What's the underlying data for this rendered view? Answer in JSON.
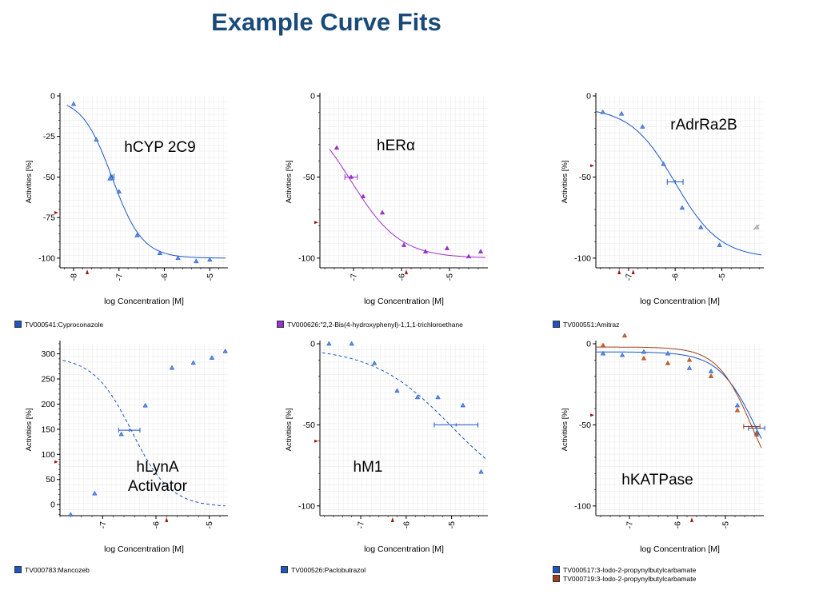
{
  "page": {
    "title": "Example Curve Fits"
  },
  "chart_data": [
    {
      "type": "scatter",
      "label_lines": [
        "hCYP 2C9"
      ],
      "xlabel": "log Concentration [M]",
      "ylabel": "Activities [%]",
      "xlim": [
        -8.3,
        -4.6
      ],
      "ylim": [
        -106,
        0
      ],
      "x_ticks": [
        -8,
        -7,
        -6,
        -5
      ],
      "x_tick_labels": [
        "-8",
        "-7",
        "-6",
        "-5"
      ],
      "y_ticks": [
        0,
        -25,
        -50,
        -75,
        -100
      ],
      "y_tick_labels": [
        "0",
        "-25",
        "-50",
        "-75",
        "-100"
      ],
      "series": [
        {
          "name": "TV000541:Cyproconazole",
          "color": "#1a56c4",
          "marker_color": "#5a8ae0",
          "dashed": false,
          "x": [
            -8.0,
            -7.5,
            -7.2,
            -7.0,
            -6.6,
            -6.1,
            -5.7,
            -5.3,
            -5.0
          ],
          "y": [
            -5,
            -27,
            -51,
            -59,
            -86,
            -97,
            -100,
            -102,
            -101
          ],
          "fit": {
            "top": -1,
            "bottom": -100,
            "ec50": -7.15,
            "hill": 1.3
          },
          "ec50_bar": {
            "x": -7.15,
            "y": -50,
            "xerr": 0.04,
            "size": 8
          }
        }
      ],
      "y_axis_marks": [
        -72
      ],
      "x_axis_marks": [
        -7.7
      ]
    },
    {
      "type": "scatter",
      "label_lines": [
        "hERα"
      ],
      "xlabel": "log Concentration [M]",
      "ylabel": "Activities [%]",
      "xlim": [
        -7.7,
        -4.2
      ],
      "ylim": [
        -106,
        0
      ],
      "x_ticks": [
        -7,
        -6,
        -5
      ],
      "x_tick_labels": [
        "-7",
        "-6",
        "-5"
      ],
      "y_ticks": [
        0,
        -50,
        -100
      ],
      "y_tick_labels": [
        "0",
        "-50",
        "-100"
      ],
      "series": [
        {
          "name": "TV000626:\"2,2-Bis(4-hydroxyphenyl)-1,1,1-trichloroethane",
          "color": "#9b30d0",
          "marker_color": "#9b30d0",
          "dashed": false,
          "x": [
            -7.35,
            -7.05,
            -6.8,
            -6.4,
            -5.95,
            -5.5,
            -5.05,
            -4.6,
            -4.35
          ],
          "y": [
            -32,
            -50,
            -62,
            -72,
            -92,
            -96,
            -94,
            -99,
            -96
          ],
          "fit": {
            "top": -5,
            "bottom": -100,
            "ec50": -7.05,
            "hill": 0.85
          },
          "ec50_bar": {
            "x": -7.05,
            "y": -50,
            "xerr": 0.13,
            "size": 7
          }
        }
      ],
      "y_axis_marks": [
        -78
      ],
      "x_axis_marks": [
        -5.9
      ]
    },
    {
      "type": "scatter",
      "label_lines": [
        "rAdrRa2B"
      ],
      "xlabel": "log Concentration [M]",
      "ylabel": "Activities [%]",
      "xlim": [
        -7.7,
        -4.1
      ],
      "ylim": [
        -106,
        0
      ],
      "x_ticks": [
        -7,
        -6,
        -5
      ],
      "x_tick_labels": [
        "-7",
        "-6",
        "-5"
      ],
      "y_ticks": [
        0,
        -50,
        -100
      ],
      "y_tick_labels": [
        "0",
        "-50",
        "-100"
      ],
      "series": [
        {
          "name": "TV000551:Amitraz",
          "color": "#1a56c4",
          "marker_color": "#5a8ae0",
          "dashed": false,
          "x": [
            -7.55,
            -7.15,
            -6.7,
            -6.25,
            -5.85,
            -5.45,
            -5.05
          ],
          "y": [
            -10,
            -11,
            -19,
            -42,
            -69,
            -81,
            -92
          ],
          "fit": {
            "top": -7,
            "bottom": -100,
            "ec50": -6.0,
            "hill": 0.9
          },
          "ec50_bar": {
            "x": -6.0,
            "y": -53,
            "xerr": 0.17,
            "size": 7
          }
        }
      ],
      "outliers": [
        {
          "x": -4.25,
          "y": -81
        }
      ],
      "y_axis_marks": [
        -43
      ],
      "x_axis_marks": [
        -7.2,
        -6.9
      ]
    },
    {
      "type": "scatter",
      "label_lines": [
        "hLynA",
        "Activator"
      ],
      "xlabel": "log Concentration [M]",
      "ylabel": "Activities [%]",
      "xlim": [
        -7.8,
        -4.65
      ],
      "ylim": [
        -22,
        320
      ],
      "x_ticks": [
        -7,
        -6,
        -5
      ],
      "x_tick_labels": [
        "-7",
        "-6",
        "-5"
      ],
      "y_ticks": [
        0,
        50,
        100,
        150,
        200,
        250,
        300
      ],
      "y_tick_labels": [
        "0",
        "50",
        "100",
        "150",
        "200",
        "250",
        "300"
      ],
      "series": [
        {
          "name": "TV000783:Mancozeb",
          "color": "#1a56c4",
          "marker_color": "#5a8ae0",
          "dashed": true,
          "x": [
            -7.6,
            -7.15,
            -6.65,
            -6.2,
            -5.7,
            -5.3,
            -4.95,
            -4.7
          ],
          "y": [
            -20,
            22,
            140,
            197,
            272,
            282,
            292,
            305
          ],
          "fit": {
            "top": 295,
            "bottom": -5,
            "ec50": -6.45,
            "hill": 1.2
          },
          "ec50_bar": {
            "x": -6.5,
            "y": 148,
            "xerr": 0.2,
            "size": 6
          }
        }
      ],
      "y_axis_marks": [
        85
      ],
      "x_axis_marks": [
        -5.8
      ]
    },
    {
      "type": "scatter",
      "label_lines": [
        "hM1"
      ],
      "xlabel": "log Concentration [M]",
      "ylabel": "Activities [%]",
      "xlim": [
        -7.9,
        -4.2
      ],
      "ylim": [
        -106,
        0
      ],
      "x_ticks": [
        -7,
        -6,
        -5
      ],
      "x_tick_labels": [
        "-7",
        "-6",
        "-5"
      ],
      "y_ticks": [
        0,
        -50,
        -100
      ],
      "y_tick_labels": [
        "0",
        "-50",
        "-100"
      ],
      "series": [
        {
          "name": "TV000526:Paclobutrazol",
          "color": "#1a56c4",
          "marker_color": "#5a8ae0",
          "dashed": true,
          "x": [
            -7.7,
            -7.2,
            -6.7,
            -6.2,
            -5.75,
            -5.3,
            -4.75,
            -4.35
          ],
          "y": [
            0,
            0,
            -12,
            -29,
            -33,
            -33,
            -38,
            -79
          ],
          "fit": {
            "top": -2,
            "bottom": -100,
            "ec50": -5.0,
            "hill": 0.5
          },
          "ec50_bar": {
            "x": -4.9,
            "y": -50,
            "xerr": 0.48,
            "size": 6
          }
        }
      ],
      "y_axis_marks": [
        -60
      ],
      "x_axis_marks": [
        -6.3
      ]
    },
    {
      "type": "scatter",
      "label_lines": [
        "hKATPase"
      ],
      "xlabel": "log Concentration [M]",
      "ylabel": "Activities [%]",
      "xlim": [
        -7.7,
        -4.2
      ],
      "ylim": [
        -106,
        0
      ],
      "x_ticks": [
        -7,
        -6,
        -5
      ],
      "x_tick_labels": [
        "-7",
        "-6",
        "-5"
      ],
      "y_ticks": [
        0,
        -50,
        -100
      ],
      "y_tick_labels": [
        "0",
        "-50",
        "-100"
      ],
      "series": [
        {
          "name": "TV000517:3-Iodo-2-propynylbutylcarbamate",
          "color": "#1a56c4",
          "marker_color": "#5a8ae0",
          "dashed": false,
          "x": [
            -7.55,
            -7.15,
            -6.7,
            -6.2,
            -5.75,
            -5.3,
            -4.75,
            -4.35
          ],
          "y": [
            -6,
            -7,
            -5,
            -6,
            -15,
            -17,
            -38,
            -55
          ],
          "fit": {
            "top": -5,
            "bottom": -100,
            "ec50": -4.35,
            "hill": 1.1
          },
          "ec50_bar": {
            "x": -4.35,
            "y": -52,
            "xerr": 0.17,
            "size": 6
          }
        },
        {
          "name": "TV000719:3-Iodo-2-propynylbutylcarbamate",
          "color": "#a0401a",
          "marker_color": "#d06020",
          "dashed": false,
          "x": [
            -7.55,
            -7.1,
            -6.7,
            -6.2,
            -5.75,
            -5.3,
            -4.75,
            -4.35
          ],
          "y": [
            -1,
            5,
            -9,
            -12,
            -10,
            -20,
            -41,
            -56
          ],
          "fit": {
            "top": -2,
            "bottom": -100,
            "ec50": -4.45,
            "hill": 1.2
          },
          "ec50_bar": {
            "x": -4.45,
            "y": -51,
            "xerr": 0.17,
            "size": 6
          }
        }
      ],
      "y_axis_marks": [
        -44
      ],
      "x_axis_marks": [
        -5.7
      ]
    }
  ]
}
